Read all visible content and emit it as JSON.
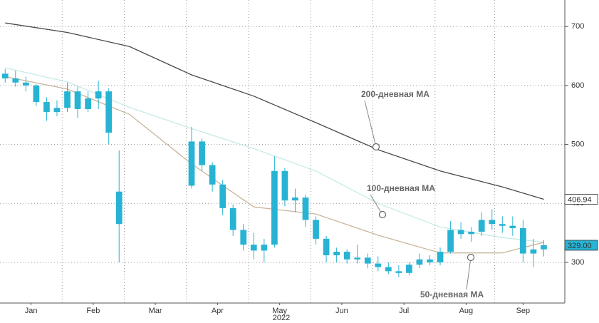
{
  "chart_data": {
    "type": "candlestick",
    "year_label": "2022",
    "xlim": [
      -0.5,
      53
    ],
    "ylim": [
      231,
      745
    ],
    "yticks": [
      300,
      400,
      500,
      600,
      700
    ],
    "grid": true,
    "xticks": [
      {
        "value": 2.5,
        "label": "Jan"
      },
      {
        "value": 8.5,
        "label": "Feb"
      },
      {
        "value": 14.5,
        "label": "Mar"
      },
      {
        "value": 20.5,
        "label": "Apr"
      },
      {
        "value": 26.5,
        "label": "May"
      },
      {
        "value": 32.5,
        "label": "Jun"
      },
      {
        "value": 38.5,
        "label": "Jul"
      },
      {
        "value": 44.5,
        "label": "Aug"
      },
      {
        "value": 50,
        "label": "Sep"
      }
    ],
    "color": "#27b3d3",
    "open": [
      620,
      612,
      605,
      600,
      572,
      555,
      562,
      590,
      560,
      578,
      590,
      420,
      null,
      null,
      null,
      null,
      null,
      null,
      430,
      505,
      465,
      432,
      392,
      355,
      330,
      320,
      330,
      455,
      405,
      410,
      372,
      340,
      312,
      318,
      305,
      308,
      298,
      292,
      285,
      282,
      296,
      305,
      300,
      318,
      355,
      348,
      352,
      372,
      365,
      362,
      358,
      315,
      322
    ],
    "high": [
      628,
      625,
      615,
      602,
      580,
      575,
      605,
      598,
      590,
      608,
      595,
      490,
      null,
      null,
      null,
      null,
      null,
      null,
      530,
      510,
      470,
      440,
      398,
      365,
      350,
      340,
      480,
      460,
      425,
      415,
      378,
      345,
      325,
      322,
      330,
      315,
      310,
      300,
      295,
      300,
      315,
      312,
      325,
      370,
      368,
      360,
      385,
      390,
      378,
      378,
      372,
      340,
      338
    ],
    "low": [
      605,
      598,
      590,
      565,
      540,
      548,
      555,
      545,
      555,
      560,
      500,
      300,
      null,
      null,
      null,
      null,
      null,
      null,
      425,
      455,
      420,
      380,
      345,
      320,
      305,
      300,
      325,
      395,
      385,
      360,
      330,
      300,
      300,
      298,
      298,
      290,
      285,
      280,
      275,
      278,
      290,
      295,
      295,
      315,
      340,
      335,
      345,
      355,
      350,
      345,
      300,
      292,
      310
    ],
    "close": [
      612,
      605,
      600,
      572,
      555,
      562,
      590,
      560,
      578,
      590,
      520,
      365,
      null,
      null,
      null,
      null,
      null,
      null,
      505,
      465,
      432,
      392,
      355,
      330,
      320,
      330,
      455,
      405,
      410,
      372,
      340,
      312,
      318,
      305,
      308,
      298,
      292,
      285,
      282,
      296,
      305,
      300,
      318,
      355,
      348,
      352,
      372,
      365,
      362,
      358,
      315,
      322,
      329
    ],
    "series": [
      {
        "name": "200-дневная MA",
        "color": "#4a4a4a",
        "x": [
          0,
          6,
          12,
          18,
          24,
          30,
          36,
          42,
          48,
          52
        ],
        "values": [
          706,
          690,
          666,
          618,
          582,
          537,
          491,
          455,
          428,
          406.94
        ]
      },
      {
        "name": "100-дневная MA",
        "color": "#c4ebe7",
        "x": [
          0,
          6,
          12,
          18,
          24,
          30,
          36,
          42,
          48,
          52
        ],
        "values": [
          630,
          606,
          563,
          527,
          493,
          455,
          400,
          360,
          342,
          334
        ]
      },
      {
        "name": "50-дневная MA",
        "color": "#c9b59b",
        "x": [
          0,
          6,
          12,
          18,
          24,
          30,
          36,
          42,
          48,
          52
        ],
        "values": [
          615,
          594,
          551,
          467,
          394,
          382,
          346,
          316,
          316,
          334
        ]
      }
    ],
    "last_values": [
      {
        "value": 406.94,
        "label": "406.94",
        "color": "#ffffff"
      },
      {
        "value": 329,
        "label": "329.00",
        "color": "#27b3d3"
      }
    ]
  }
}
